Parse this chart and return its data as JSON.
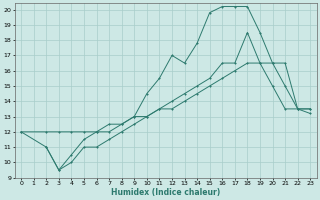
{
  "background_color": "#cde8e5",
  "grid_color": "#a8ceca",
  "line_color": "#2d7a6e",
  "xlabel": "Humidex (Indice chaleur)",
  "xlim": [
    -0.5,
    23.5
  ],
  "ylim": [
    9,
    20.4
  ],
  "yticks": [
    9,
    10,
    11,
    12,
    13,
    14,
    15,
    16,
    17,
    18,
    19,
    20
  ],
  "xticks": [
    0,
    1,
    2,
    3,
    4,
    5,
    6,
    7,
    8,
    9,
    10,
    11,
    12,
    13,
    14,
    15,
    16,
    17,
    18,
    19,
    20,
    21,
    22,
    23
  ],
  "series1_x": [
    0,
    2,
    3,
    4,
    5,
    6,
    7,
    8,
    9,
    10,
    11,
    12,
    13,
    14,
    15,
    16,
    17,
    18,
    19,
    20,
    21,
    22,
    23
  ],
  "series1_y": [
    12,
    12,
    12,
    12,
    12,
    12,
    12.5,
    12.5,
    13,
    13,
    13.5,
    13.5,
    14,
    14.5,
    15,
    15.5,
    16,
    16.5,
    16.5,
    16.5,
    16.5,
    13.5,
    13.5
  ],
  "series2_x": [
    0,
    2,
    3,
    4,
    5,
    6,
    7,
    8,
    9,
    10,
    11,
    12,
    13,
    14,
    15,
    16,
    17,
    18,
    19,
    20,
    21,
    22,
    23
  ],
  "series2_y": [
    12,
    11,
    9.5,
    10.5,
    11.5,
    12,
    12,
    12.5,
    13,
    14.5,
    15.5,
    17,
    16.5,
    17.8,
    19.8,
    20.2,
    20.2,
    20.2,
    18.5,
    16.5,
    15,
    13.5,
    13.2
  ],
  "series3_x": [
    2,
    3,
    4,
    5,
    6,
    7,
    8,
    9,
    10,
    11,
    12,
    13,
    14,
    15,
    16,
    17,
    18,
    19,
    20,
    21,
    22,
    23
  ],
  "series3_y": [
    11,
    9.5,
    10,
    11,
    11,
    11.5,
    12,
    12.5,
    13,
    13.5,
    14,
    14.5,
    15,
    15.5,
    16.5,
    16.5,
    18.5,
    16.5,
    15,
    13.5,
    13.5,
    13.5
  ]
}
